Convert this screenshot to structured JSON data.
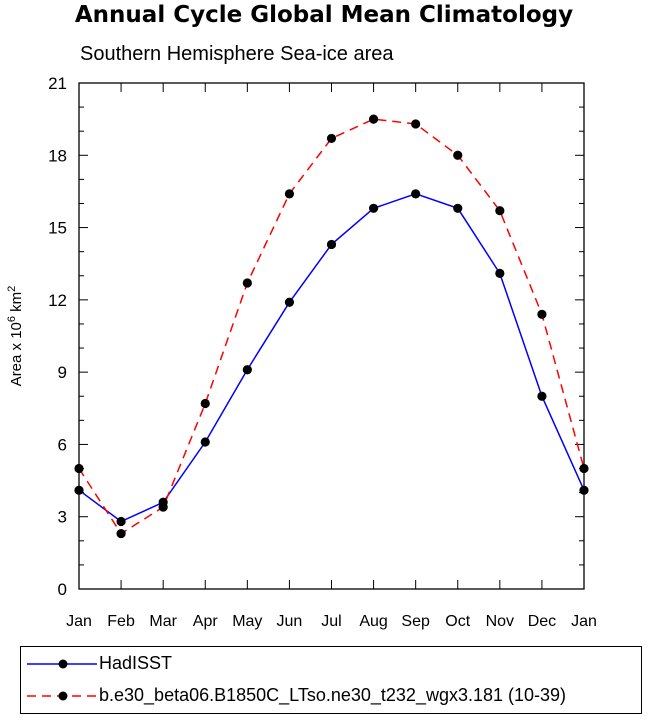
{
  "title": "Annual Cycle Global Mean Climatology",
  "subtitle": "Southern Hemisphere Sea-ice area",
  "chart_data": {
    "type": "line",
    "title": "Annual Cycle Global Mean Climatology",
    "subtitle": "Southern Hemisphere Sea-ice area",
    "xlabel": "",
    "ylabel": "Area x 10^6 km^2",
    "ylabel_parts": {
      "prefix": "Area x 10",
      "exp1": "6",
      "mid": " km",
      "exp2": "2"
    },
    "categories": [
      "Jan",
      "Feb",
      "Mar",
      "Apr",
      "May",
      "Jun",
      "Jul",
      "Aug",
      "Sep",
      "Oct",
      "Nov",
      "Dec",
      "Jan"
    ],
    "ylim": [
      0,
      21
    ],
    "yticks": [
      "0",
      "3",
      "6",
      "9",
      "12",
      "15",
      "18",
      "21"
    ],
    "grid": false,
    "legend_position": "bottom",
    "series": [
      {
        "name": "HadISST",
        "color": "#0000ff",
        "dash": "solid",
        "values": [
          4.1,
          2.8,
          3.6,
          6.1,
          9.1,
          11.9,
          14.3,
          15.8,
          16.4,
          15.8,
          13.1,
          8.0,
          4.1
        ]
      },
      {
        "name": "b.e30_beta06.B1850C_LTso.ne30_t232_wgx3.181 (10-39)",
        "color": "#ff0000",
        "dash": "dashed",
        "values": [
          5.0,
          2.3,
          3.4,
          7.7,
          12.7,
          16.4,
          18.7,
          19.5,
          19.3,
          18.0,
          15.7,
          11.4,
          5.0
        ]
      }
    ]
  }
}
